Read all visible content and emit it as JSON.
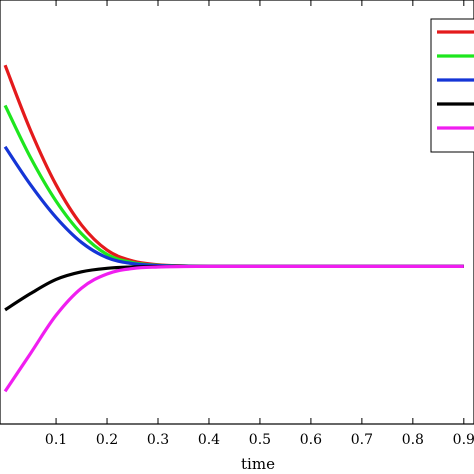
{
  "chart_data": {
    "type": "line",
    "title": "",
    "xlabel": "time",
    "ylabel": "",
    "xlim": [
      -0.01,
      0.92
    ],
    "ylim": [
      -1.45,
      2.45
    ],
    "x_ticks": [
      0.1,
      0.2,
      0.3,
      0.4,
      0.5,
      0.6,
      0.7,
      0.8,
      0.9
    ],
    "x_tick_labels": [
      "0.1",
      "0.2",
      "0.3",
      "0.4",
      "0.5",
      "0.6",
      "0.7",
      "0.8",
      "0.9"
    ],
    "grid": false,
    "legend_position": "top-right",
    "series": [
      {
        "color": "#e41a1c",
        "x": [
          0,
          0.05,
          0.1,
          0.15,
          0.2,
          0.25,
          0.3,
          0.35,
          0.4,
          0.45,
          0.5,
          0.6,
          0.7,
          0.8,
          0.9
        ],
        "y": [
          1.85,
          1.25,
          0.75,
          0.38,
          0.15,
          0.05,
          0.015,
          0.004,
          0.0,
          0.0,
          0.0,
          0.0,
          0.0,
          0.0,
          0.0
        ]
      },
      {
        "color": "#1ee61e",
        "x": [
          0,
          0.05,
          0.1,
          0.15,
          0.2,
          0.25,
          0.3,
          0.35,
          0.4,
          0.45,
          0.5,
          0.6,
          0.7,
          0.8,
          0.9
        ],
        "y": [
          1.48,
          1.0,
          0.6,
          0.3,
          0.11,
          0.035,
          0.01,
          0.003,
          0.0,
          0.0,
          0.0,
          0.0,
          0.0,
          0.0,
          0.0
        ]
      },
      {
        "color": "#1535d6",
        "x": [
          0,
          0.05,
          0.1,
          0.15,
          0.2,
          0.25,
          0.3,
          0.35,
          0.4,
          0.45,
          0.5,
          0.6,
          0.7,
          0.8,
          0.9
        ],
        "y": [
          1.1,
          0.75,
          0.45,
          0.22,
          0.08,
          0.025,
          0.007,
          0.002,
          0.0,
          0.0,
          0.0,
          0.0,
          0.0,
          0.0,
          0.0
        ]
      },
      {
        "color": "#000000",
        "x": [
          0,
          0.05,
          0.1,
          0.15,
          0.2,
          0.25,
          0.3,
          0.35,
          0.4,
          0.45,
          0.5,
          0.6,
          0.7,
          0.8,
          0.9
        ],
        "y": [
          -0.4,
          -0.25,
          -0.12,
          -0.05,
          -0.018,
          -0.006,
          -0.002,
          0.0,
          0.0,
          0.0,
          0.0,
          0.0,
          0.0,
          0.0,
          0.0
        ]
      },
      {
        "color": "#f01ef0",
        "x": [
          0,
          0.05,
          0.1,
          0.15,
          0.2,
          0.25,
          0.3,
          0.35,
          0.4,
          0.45,
          0.5,
          0.6,
          0.7,
          0.8,
          0.9
        ],
        "y": [
          -1.15,
          -0.8,
          -0.45,
          -0.2,
          -0.07,
          -0.02,
          -0.006,
          -0.002,
          0.0,
          0.0,
          0.0,
          0.0,
          0.0,
          0.0,
          0.0
        ]
      }
    ]
  }
}
